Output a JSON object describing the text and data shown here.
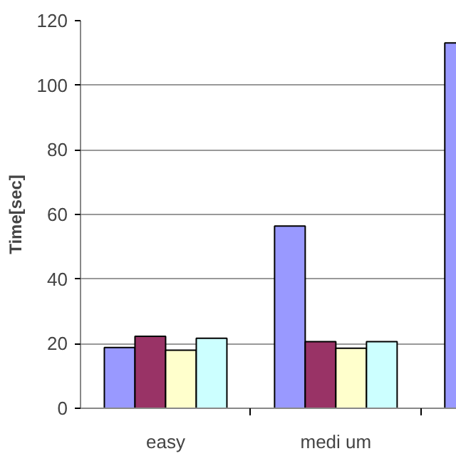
{
  "chart_data": {
    "type": "bar",
    "ylabel": "Time[sec]",
    "categories": [
      "easy",
      "medi um",
      null
    ],
    "series": [
      {
        "color": "#9999ff",
        "values": [
          18.8,
          56.4,
          113.1
        ]
      },
      {
        "color": "#993366",
        "values": [
          22.3,
          20.6,
          null
        ]
      },
      {
        "color": "#ffffcc",
        "values": [
          18.0,
          18.6,
          null
        ]
      },
      {
        "color": "#ccffff",
        "values": [
          21.7,
          20.6,
          null
        ]
      }
    ],
    "ylim": [
      0,
      120
    ],
    "yticks": [
      0,
      20,
      40,
      60,
      80,
      100,
      120
    ],
    "grid": "y"
  }
}
